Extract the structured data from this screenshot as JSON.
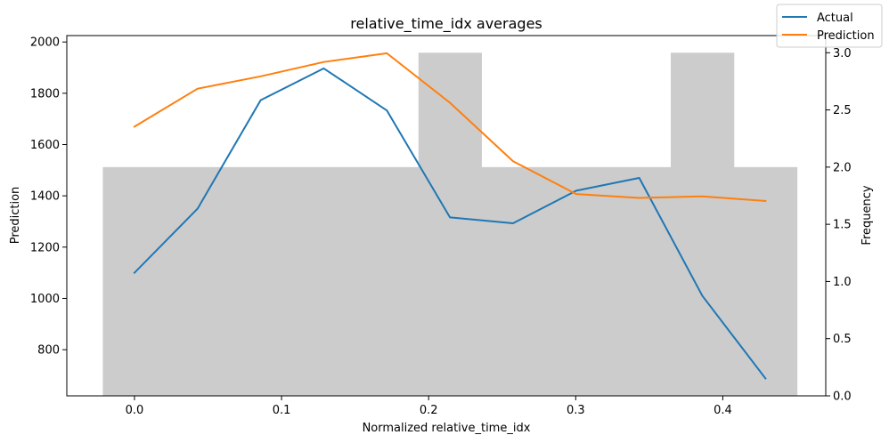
{
  "chart_data": {
    "type": "bar",
    "title": "relative_time_idx averages",
    "xlabel": "Normalized relative_time_idx",
    "ylabel": "Prediction",
    "y2label": "Frequency",
    "xlim": [
      -0.046,
      0.47
    ],
    "ylim": [
      620,
      2025
    ],
    "y2lim": [
      0,
      3.15
    ],
    "xticks": [
      "0.0",
      "0.1",
      "0.2",
      "0.3",
      "0.4"
    ],
    "xtick_values": [
      0.0,
      0.1,
      0.2,
      0.3,
      0.4
    ],
    "yticks": [
      "800",
      "1000",
      "1200",
      "1400",
      "1600",
      "1800",
      "2000"
    ],
    "ytick_values": [
      800,
      1000,
      1200,
      1400,
      1600,
      1800,
      2000
    ],
    "y2ticks": [
      "0.0",
      "0.5",
      "1.0",
      "1.5",
      "2.0",
      "2.5",
      "3.0"
    ],
    "y2tick_values": [
      0.0,
      0.5,
      1.0,
      1.5,
      2.0,
      2.5,
      3.0
    ],
    "histogram": {
      "bin_edges": [
        -0.0215,
        0.0215,
        0.0644,
        0.1073,
        0.1502,
        0.1931,
        0.2359,
        0.2788,
        0.3217,
        0.3646,
        0.4075,
        0.4504
      ],
      "counts": [
        2,
        2,
        2,
        2,
        2,
        3,
        2,
        2,
        2,
        3,
        2
      ],
      "color": "#cccccc"
    },
    "x": [
      0.0,
      0.0429,
      0.0858,
      0.1287,
      0.1716,
      0.2145,
      0.2574,
      0.3003,
      0.3432,
      0.3861,
      0.429
    ],
    "series": [
      {
        "name": "Actual",
        "color": "#1f77b4",
        "values": [
          1100,
          1350,
          1773,
          1897,
          1733,
          1316,
          1293,
          1420,
          1470,
          1010,
          688
        ]
      },
      {
        "name": "Prediction",
        "color": "#ff7f0e",
        "values": [
          1670,
          1818,
          1866,
          1922,
          1956,
          1763,
          1535,
          1407,
          1392,
          1398,
          1380
        ]
      }
    ],
    "legend_position": "top-right",
    "grid": false
  }
}
